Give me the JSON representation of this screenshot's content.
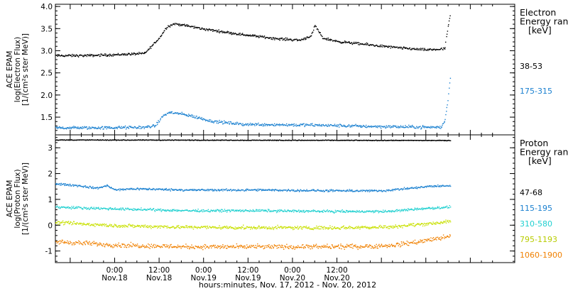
{
  "chart_data": {
    "type": "scatter",
    "x_axis_title": "hours:minutes, Nov. 17, 2012 - Nov. 20, 2012",
    "x_ticks": [
      {
        "time": "0:00",
        "date": "Nov.18"
      },
      {
        "time": "12:00",
        "date": "Nov.18"
      },
      {
        "time": "0:00",
        "date": "Nov.19"
      },
      {
        "time": "12:00",
        "date": "Nov.19"
      },
      {
        "time": "0:00",
        "date": "Nov.20"
      },
      {
        "time": "12:00",
        "date": "Nov.20"
      }
    ],
    "panels": [
      {
        "id": "electron",
        "ylabel_lines": [
          "ACE EPAM",
          "log(Electron Flux)",
          "[1/(cm²s ster MeV)]"
        ],
        "ylim": [
          1.1,
          4.05
        ],
        "y_ticks": [
          "1.5",
          "2.0",
          "2.5",
          "3.0",
          "3.5",
          "4.0"
        ],
        "y_tick_values": [
          1.5,
          2.0,
          2.5,
          3.0,
          3.5,
          4.0
        ],
        "legend_title": [
          "Electron",
          "Energy ran",
          "[keV]"
        ],
        "series": [
          {
            "name": "38-53",
            "color": "#000000",
            "scatter": 0.04,
            "points": [
              [
                -16,
                2.9
              ],
              [
                -8,
                2.9
              ],
              [
                0,
                2.92
              ],
              [
                8,
                2.95
              ],
              [
                12,
                3.3
              ],
              [
                14,
                3.55
              ],
              [
                16,
                3.62
              ],
              [
                19,
                3.58
              ],
              [
                24,
                3.5
              ],
              [
                34,
                3.38
              ],
              [
                44,
                3.28
              ],
              [
                50,
                3.25
              ],
              [
                53,
                3.35
              ],
              [
                54,
                3.58
              ],
              [
                56,
                3.3
              ],
              [
                60,
                3.22
              ],
              [
                68,
                3.15
              ],
              [
                76,
                3.08
              ],
              [
                84,
                3.03
              ],
              [
                89,
                3.05
              ],
              [
                89.5,
                3.35
              ],
              [
                90,
                3.58
              ],
              [
                90.5,
                3.82
              ]
            ]
          },
          {
            "name": "175-315",
            "color": "#1a80d0",
            "scatter": 0.05,
            "points": [
              [
                -16,
                1.27
              ],
              [
                -4,
                1.27
              ],
              [
                8,
                1.28
              ],
              [
                11,
                1.32
              ],
              [
                13,
                1.55
              ],
              [
                15,
                1.62
              ],
              [
                20,
                1.55
              ],
              [
                26,
                1.42
              ],
              [
                34,
                1.35
              ],
              [
                54,
                1.33
              ],
              [
                70,
                1.3
              ],
              [
                88,
                1.28
              ],
              [
                89,
                1.42
              ],
              [
                89.5,
                1.7
              ],
              [
                90,
                2.0
              ],
              [
                90.5,
                2.42
              ]
            ]
          }
        ]
      },
      {
        "id": "proton",
        "ylabel_lines": [
          "ACE EPAM",
          "log(Proton Flux)",
          "[1/(cm²s ster MeV)]"
        ],
        "ylim": [
          -1.45,
          3.5
        ],
        "y_ticks": [
          "-1",
          "0",
          "1",
          "2",
          "3"
        ],
        "y_tick_values": [
          -1,
          0,
          1,
          2,
          3
        ],
        "legend_title": [
          "Proton",
          "Energy ran",
          "[keV]"
        ],
        "series": [
          {
            "name": "47-68",
            "color": "#000000",
            "scatter": 0.02,
            "points": [
              [
                -16,
                3.32
              ],
              [
                90.5,
                3.3
              ]
            ]
          },
          {
            "name": "115-195",
            "color": "#1a80d0",
            "scatter": 0.06,
            "points": [
              [
                -16,
                1.62
              ],
              [
                -10,
                1.55
              ],
              [
                -5,
                1.45
              ],
              [
                -2,
                1.55
              ],
              [
                0,
                1.38
              ],
              [
                5,
                1.43
              ],
              [
                20,
                1.38
              ],
              [
                40,
                1.38
              ],
              [
                60,
                1.35
              ],
              [
                72,
                1.35
              ],
              [
                80,
                1.45
              ],
              [
                85,
                1.52
              ],
              [
                90.5,
                1.55
              ]
            ]
          },
          {
            "name": "310-580",
            "color": "#20d0d0",
            "scatter": 0.07,
            "points": [
              [
                -16,
                0.72
              ],
              [
                0,
                0.65
              ],
              [
                20,
                0.58
              ],
              [
                40,
                0.58
              ],
              [
                60,
                0.55
              ],
              [
                74,
                0.55
              ],
              [
                82,
                0.65
              ],
              [
                90.5,
                0.72
              ]
            ]
          },
          {
            "name": "795-1193",
            "color": "#c8e000",
            "scatter": 0.1,
            "points": [
              [
                -16,
                0.12
              ],
              [
                0,
                0.0
              ],
              [
                20,
                -0.06
              ],
              [
                40,
                -0.08
              ],
              [
                60,
                -0.08
              ],
              [
                74,
                -0.05
              ],
              [
                82,
                0.05
              ],
              [
                90.5,
                0.15
              ]
            ]
          },
          {
            "name": "1060-1900",
            "color": "#f08000",
            "scatter": 0.13,
            "points": [
              [
                -16,
                -0.62
              ],
              [
                0,
                -0.75
              ],
              [
                20,
                -0.82
              ],
              [
                40,
                -0.82
              ],
              [
                60,
                -0.82
              ],
              [
                74,
                -0.78
              ],
              [
                82,
                -0.62
              ],
              [
                90.5,
                -0.42
              ]
            ]
          }
        ]
      }
    ]
  }
}
